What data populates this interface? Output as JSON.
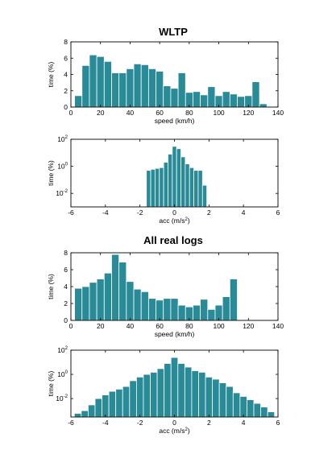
{
  "colors": {
    "bar": "#2a8b98",
    "bar_stroke": "#ffffff",
    "axis": "#000000"
  },
  "headings": {
    "top": "WLTP",
    "bottom": "All real logs"
  },
  "chart_data": [
    {
      "type": "bar",
      "group": "WLTP",
      "title": "WLTP",
      "xlabel": "speed (km/h)",
      "ylabel": "time (%)",
      "xlim": [
        0,
        140
      ],
      "ylim": [
        0,
        8
      ],
      "xticks": [
        0,
        20,
        40,
        60,
        80,
        100,
        120,
        140
      ],
      "yticks": [
        0,
        2,
        4,
        6,
        8
      ],
      "bin_width": 5,
      "x": [
        5,
        10,
        15,
        20,
        25,
        30,
        35,
        40,
        45,
        50,
        55,
        60,
        65,
        70,
        75,
        80,
        85,
        90,
        95,
        100,
        105,
        110,
        115,
        120,
        125,
        130
      ],
      "values": [
        1.4,
        5.1,
        6.4,
        6.2,
        5.6,
        4.2,
        4.2,
        4.7,
        5.3,
        5.2,
        4.7,
        4.4,
        2.6,
        2.3,
        4.2,
        1.8,
        1.9,
        1.5,
        2.5,
        1.4,
        1.9,
        1.6,
        1.3,
        1.4,
        3.1,
        0.4
      ]
    },
    {
      "type": "bar",
      "group": "WLTP",
      "xlabel": "acc (m/s²)",
      "ylabel": "time (%)",
      "scale": "log",
      "xlim": [
        -6,
        6
      ],
      "ylim": [
        0.001,
        100
      ],
      "xticks": [
        -6,
        -4,
        -2,
        0,
        2,
        4,
        6
      ],
      "yticks": [
        100,
        1,
        0.01
      ],
      "ytick_labels": [
        "10^2",
        "10^0",
        "10^-2"
      ],
      "bin_width": 0.25,
      "x": [
        -1.5,
        -1.25,
        -1.0,
        -0.75,
        -0.5,
        -0.25,
        0.0,
        0.25,
        0.5,
        0.75,
        1.0,
        1.25,
        1.5,
        1.75
      ],
      "values": [
        0.5,
        0.6,
        0.7,
        0.8,
        2,
        8,
        30,
        20,
        5,
        1.5,
        0.8,
        0.5,
        0.5,
        0.04
      ]
    },
    {
      "type": "bar",
      "group": "All real logs",
      "title": "All real logs",
      "xlabel": "speed (km/h)",
      "ylabel": "time (%)",
      "xlim": [
        0,
        140
      ],
      "ylim": [
        0,
        8
      ],
      "xticks": [
        0,
        20,
        40,
        60,
        80,
        100,
        120,
        140
      ],
      "yticks": [
        0,
        2,
        4,
        6,
        8
      ],
      "bin_width": 5,
      "x": [
        5,
        10,
        15,
        20,
        25,
        30,
        35,
        40,
        45,
        50,
        55,
        60,
        65,
        70,
        75,
        80,
        85,
        90,
        95,
        100,
        105,
        110
      ],
      "values": [
        3.8,
        4.0,
        4.5,
        4.9,
        5.6,
        7.8,
        6.9,
        4.6,
        3.7,
        3.4,
        2.6,
        2.4,
        2.6,
        2.6,
        1.8,
        1.6,
        1.8,
        2.5,
        1.3,
        1.8,
        2.8,
        4.9
      ]
    },
    {
      "type": "bar",
      "group": "All real logs",
      "xlabel": "acc (m/s²)",
      "ylabel": "time (%)",
      "scale": "log",
      "xlim": [
        -6,
        6
      ],
      "ylim": [
        0.0003,
        100
      ],
      "xticks": [
        -6,
        -4,
        -2,
        0,
        2,
        4,
        6
      ],
      "yticks": [
        100,
        1,
        0.01
      ],
      "ytick_labels": [
        "10^2",
        "10^0",
        "10^-2"
      ],
      "bin_width": 0.4,
      "x": [
        -5.6,
        -5.2,
        -4.8,
        -4.4,
        -4.0,
        -3.6,
        -3.2,
        -2.8,
        -2.4,
        -2.0,
        -1.6,
        -1.2,
        -0.8,
        -0.4,
        0.0,
        0.4,
        0.8,
        1.2,
        1.6,
        2.0,
        2.4,
        2.8,
        3.2,
        3.6,
        4.0,
        4.4,
        4.8,
        5.2,
        5.6
      ],
      "values": [
        0.0006,
        0.001,
        0.003,
        0.01,
        0.02,
        0.04,
        0.06,
        0.1,
        0.3,
        0.6,
        1.0,
        1.5,
        3,
        8,
        25,
        8,
        4,
        2,
        1.5,
        0.6,
        0.4,
        0.2,
        0.1,
        0.03,
        0.015,
        0.008,
        0.004,
        0.002,
        0.0008
      ]
    }
  ]
}
